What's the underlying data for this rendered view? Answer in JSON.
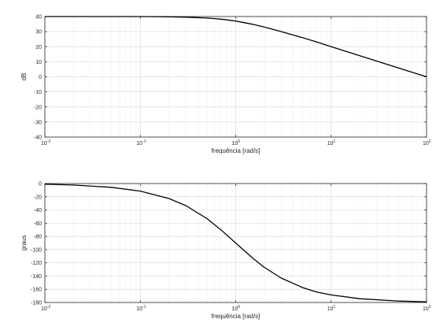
{
  "chart_data": [
    {
      "type": "line",
      "xscale": "log",
      "xlim": [
        0.01,
        100
      ],
      "ylim": [
        -40,
        40
      ],
      "xlabel": "frequência [rad/s]",
      "ylabel": "dB",
      "grid": true,
      "yticks": [
        40,
        30,
        20,
        10,
        0,
        -10,
        -20,
        -30,
        -40
      ],
      "xticks": [
        {
          "base": "10",
          "exp": "-2",
          "value": 0.01
        },
        {
          "base": "10",
          "exp": "-1",
          "value": 0.1
        },
        {
          "base": "10",
          "exp": "0",
          "value": 1
        },
        {
          "base": "10",
          "exp": "1",
          "value": 10
        },
        {
          "base": "10",
          "exp": "2",
          "value": 100
        }
      ],
      "series": [
        {
          "x": [
            0.01,
            0.02,
            0.05,
            0.1,
            0.2,
            0.3,
            0.5,
            0.7,
            1,
            1.5,
            2,
            3,
            5,
            7,
            10,
            20,
            50,
            100
          ],
          "values": [
            40,
            40,
            40,
            40,
            39.8,
            39.6,
            39,
            38.3,
            37,
            34.9,
            33,
            30,
            26,
            23.2,
            20,
            14,
            6,
            0
          ]
        }
      ]
    },
    {
      "type": "line",
      "xscale": "log",
      "xlim": [
        0.01,
        100
      ],
      "ylim": [
        -180,
        0
      ],
      "xlabel": "frequência [rad/s]",
      "ylabel": "graus",
      "grid": true,
      "yticks": [
        0,
        -20,
        -40,
        -60,
        -80,
        -100,
        -120,
        -140,
        -160,
        -180
      ],
      "xticks": [
        {
          "base": "10",
          "exp": "-2",
          "value": 0.01
        },
        {
          "base": "10",
          "exp": "-1",
          "value": 0.1
        },
        {
          "base": "10",
          "exp": "0",
          "value": 1
        },
        {
          "base": "10",
          "exp": "1",
          "value": 10
        },
        {
          "base": "10",
          "exp": "2",
          "value": 100
        }
      ],
      "series": [
        {
          "x": [
            0.01,
            0.02,
            0.05,
            0.1,
            0.2,
            0.3,
            0.5,
            0.7,
            1,
            1.5,
            2,
            3,
            5,
            7,
            10,
            20,
            50,
            100
          ],
          "values": [
            -1.1,
            -2.3,
            -5.7,
            -11.4,
            -22.6,
            -33.4,
            -53.1,
            -70,
            -90,
            -112.6,
            -126.9,
            -143.1,
            -157.4,
            -164,
            -168.6,
            -174.3,
            -177.7,
            -178.9
          ]
        }
      ]
    }
  ]
}
